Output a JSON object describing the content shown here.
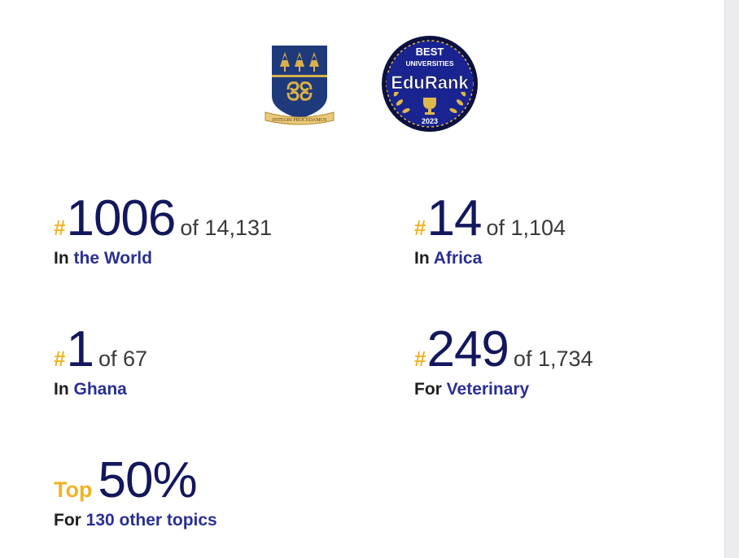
{
  "logos": {
    "crest_motto": "INTEGRI PROCEDAMUS",
    "badge_line1": "BEST",
    "badge_line2": "UNIVERSITIES",
    "badge_brand": "EduRank",
    "badge_year": "2023"
  },
  "stats": [
    {
      "hash": "#",
      "rank": "1006",
      "of_text": "of 14,131",
      "prefix": "In",
      "link": "the World"
    },
    {
      "hash": "#",
      "rank": "14",
      "of_text": "of 1,104",
      "prefix": "In",
      "link": "Africa"
    },
    {
      "hash": "#",
      "rank": "1",
      "of_text": "of 67",
      "prefix": "In",
      "link": "Ghana"
    },
    {
      "hash": "#",
      "rank": "249",
      "of_text": "of 1,734",
      "prefix": "For",
      "link": "Veterinary"
    }
  ],
  "top": {
    "label": "Top",
    "value": "50%",
    "prefix": "For",
    "link": "130 other topics"
  },
  "colors": {
    "navy": "#13175c",
    "gold": "#f0b323",
    "link_blue": "#2a2f93",
    "crest_blue": "#1e3a7a"
  }
}
